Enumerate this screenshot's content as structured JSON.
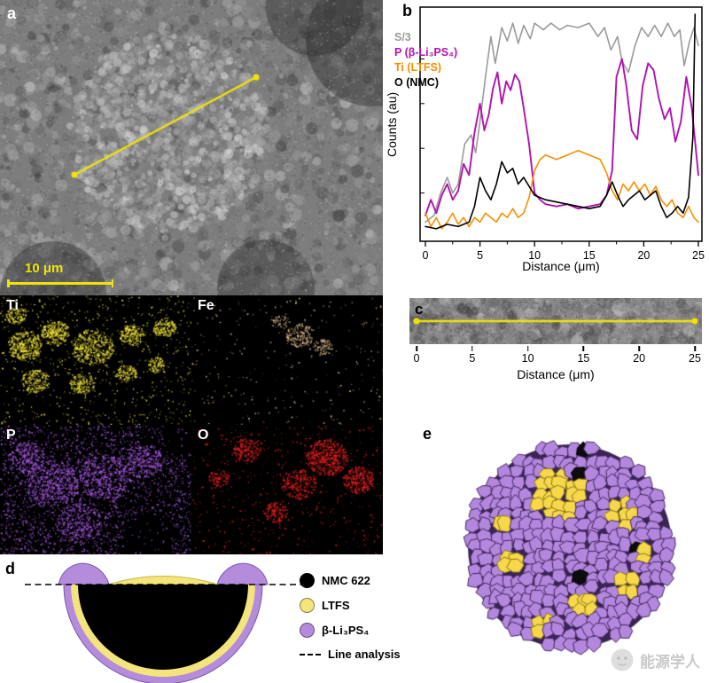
{
  "panel_a": {
    "label": "a",
    "scale_bar_label": "10 μm"
  },
  "element_maps": [
    {
      "label": "Ti",
      "color": "#f0e43a"
    },
    {
      "label": "Fe",
      "color": "#e6c08e"
    },
    {
      "label": "P",
      "color": "#aa5ce6"
    },
    {
      "label": "O",
      "color": "#e62020"
    }
  ],
  "panel_b": {
    "label": "b"
  },
  "panel_c": {
    "label": "c",
    "xlabel": "Distance (μm)",
    "xticks": [
      0,
      5,
      10,
      15,
      20,
      25
    ]
  },
  "panel_d": {
    "label": "d",
    "legend": [
      {
        "label": "NMC 622",
        "color": "#000000"
      },
      {
        "label": "LTFS",
        "color": "#f4e47c"
      },
      {
        "label": "β-Li₃PS₄",
        "color": "#b48cdb"
      },
      {
        "label": "Line analysis",
        "style": "dashed"
      }
    ]
  },
  "panel_e": {
    "label": "e"
  },
  "watermark": {
    "text": "能源学人"
  },
  "chart_data": {
    "type": "line",
    "title": "",
    "xlabel": "Distance (μm)",
    "ylabel": "Counts (au)",
    "xlim": [
      0,
      25
    ],
    "ylim": [
      0,
      1
    ],
    "xticks": [
      0,
      5,
      10,
      15,
      20,
      25
    ],
    "grid": false,
    "legend_position": "upper-left",
    "series": [
      {
        "name": "S/3",
        "color": "#9a9a9a",
        "points": [
          [
            0,
            0.07
          ],
          [
            0.8,
            0.1
          ],
          [
            1.4,
            0.2
          ],
          [
            2,
            0.27
          ],
          [
            2.5,
            0.2
          ],
          [
            3,
            0.24
          ],
          [
            3.6,
            0.42
          ],
          [
            4.2,
            0.46
          ],
          [
            4.6,
            0.38
          ],
          [
            5,
            0.52
          ],
          [
            5.5,
            0.72
          ],
          [
            6,
            0.9
          ],
          [
            6.4,
            0.78
          ],
          [
            7,
            0.94
          ],
          [
            7.5,
            0.88
          ],
          [
            8,
            0.96
          ],
          [
            8.5,
            0.87
          ],
          [
            9,
            0.95
          ],
          [
            9.6,
            0.89
          ],
          [
            10,
            0.96
          ],
          [
            10.8,
            0.93
          ],
          [
            11.5,
            0.96
          ],
          [
            12.3,
            0.93
          ],
          [
            13,
            0.95
          ],
          [
            14,
            0.94
          ],
          [
            15,
            0.96
          ],
          [
            15.8,
            0.9
          ],
          [
            16.4,
            0.94
          ],
          [
            17,
            0.84
          ],
          [
            17.6,
            0.9
          ],
          [
            18,
            0.79
          ],
          [
            18.6,
            0.74
          ],
          [
            19.2,
            0.86
          ],
          [
            19.8,
            0.94
          ],
          [
            20.4,
            0.9
          ],
          [
            21,
            0.95
          ],
          [
            21.6,
            0.9
          ],
          [
            22.2,
            0.96
          ],
          [
            22.8,
            0.9
          ],
          [
            23.3,
            0.93
          ],
          [
            23.7,
            0.77
          ],
          [
            24.2,
            0.88
          ],
          [
            24.6,
            0.94
          ],
          [
            25,
            0.86
          ]
        ]
      },
      {
        "name": "P (β-Li₃PS₄)",
        "color": "#b012b0",
        "points": [
          [
            0,
            0.1
          ],
          [
            0.5,
            0.17
          ],
          [
            1,
            0.11
          ],
          [
            1.5,
            0.19
          ],
          [
            2,
            0.24
          ],
          [
            2.5,
            0.17
          ],
          [
            3,
            0.21
          ],
          [
            3.5,
            0.33
          ],
          [
            4,
            0.28
          ],
          [
            4.5,
            0.47
          ],
          [
            5,
            0.6
          ],
          [
            5.4,
            0.48
          ],
          [
            5.8,
            0.55
          ],
          [
            6.2,
            0.67
          ],
          [
            6.6,
            0.74
          ],
          [
            7,
            0.6
          ],
          [
            7.4,
            0.7
          ],
          [
            7.8,
            0.66
          ],
          [
            8.2,
            0.73
          ],
          [
            8.6,
            0.7
          ],
          [
            9,
            0.58
          ],
          [
            9.5,
            0.42
          ],
          [
            10,
            0.2
          ],
          [
            10.5,
            0.17
          ],
          [
            11,
            0.15
          ],
          [
            12,
            0.14
          ],
          [
            13,
            0.15
          ],
          [
            14,
            0.13
          ],
          [
            15,
            0.14
          ],
          [
            16,
            0.15
          ],
          [
            16.6,
            0.19
          ],
          [
            17.1,
            0.3
          ],
          [
            17.5,
            0.72
          ],
          [
            18,
            0.8
          ],
          [
            18.4,
            0.68
          ],
          [
            18.9,
            0.48
          ],
          [
            19.4,
            0.44
          ],
          [
            19.9,
            0.68
          ],
          [
            20.4,
            0.78
          ],
          [
            20.9,
            0.75
          ],
          [
            21.4,
            0.62
          ],
          [
            21.9,
            0.53
          ],
          [
            22.4,
            0.58
          ],
          [
            22.9,
            0.43
          ],
          [
            23.4,
            0.52
          ],
          [
            23.9,
            0.72
          ],
          [
            24.4,
            0.58
          ],
          [
            25,
            0.28
          ]
        ]
      },
      {
        "name": "Ti (LTFS)",
        "color": "#f59000",
        "points": [
          [
            0,
            0.11
          ],
          [
            0.5,
            0.05
          ],
          [
            1,
            0.09
          ],
          [
            1.5,
            0.04
          ],
          [
            2,
            0.07
          ],
          [
            2.5,
            0.11
          ],
          [
            3,
            0.06
          ],
          [
            3.5,
            0.09
          ],
          [
            4,
            0.05
          ],
          [
            4.5,
            0.09
          ],
          [
            5,
            0.07
          ],
          [
            5.5,
            0.11
          ],
          [
            6,
            0.09
          ],
          [
            6.5,
            0.07
          ],
          [
            7,
            0.11
          ],
          [
            7.5,
            0.09
          ],
          [
            8,
            0.13
          ],
          [
            8.5,
            0.09
          ],
          [
            9,
            0.11
          ],
          [
            9.5,
            0.18
          ],
          [
            10,
            0.3
          ],
          [
            10.5,
            0.35
          ],
          [
            11,
            0.37
          ],
          [
            12,
            0.35
          ],
          [
            13,
            0.37
          ],
          [
            14,
            0.39
          ],
          [
            15,
            0.37
          ],
          [
            16,
            0.35
          ],
          [
            16.6,
            0.29
          ],
          [
            17.1,
            0.21
          ],
          [
            17.6,
            0.17
          ],
          [
            18.1,
            0.24
          ],
          [
            18.6,
            0.21
          ],
          [
            19.1,
            0.25
          ],
          [
            19.6,
            0.21
          ],
          [
            20.1,
            0.24
          ],
          [
            20.6,
            0.19
          ],
          [
            21.1,
            0.23
          ],
          [
            21.6,
            0.17
          ],
          [
            22.1,
            0.14
          ],
          [
            22.6,
            0.17
          ],
          [
            23.1,
            0.11
          ],
          [
            23.6,
            0.09
          ],
          [
            24.1,
            0.14
          ],
          [
            24.6,
            0.09
          ],
          [
            25,
            0.07
          ]
        ]
      },
      {
        "name": "O (NMC)",
        "color": "#000000",
        "points": [
          [
            0,
            0.05
          ],
          [
            1,
            0.04
          ],
          [
            2,
            0.06
          ],
          [
            3,
            0.05
          ],
          [
            4,
            0.07
          ],
          [
            4.5,
            0.14
          ],
          [
            5,
            0.27
          ],
          [
            5.5,
            0.21
          ],
          [
            6,
            0.17
          ],
          [
            6.5,
            0.24
          ],
          [
            7,
            0.34
          ],
          [
            7.5,
            0.29
          ],
          [
            8,
            0.31
          ],
          [
            8.5,
            0.24
          ],
          [
            9,
            0.27
          ],
          [
            9.5,
            0.23
          ],
          [
            10,
            0.19
          ],
          [
            11,
            0.17
          ],
          [
            12,
            0.16
          ],
          [
            13,
            0.15
          ],
          [
            14,
            0.14
          ],
          [
            15,
            0.13
          ],
          [
            16,
            0.14
          ],
          [
            16.6,
            0.19
          ],
          [
            17.1,
            0.25
          ],
          [
            17.6,
            0.19
          ],
          [
            18.1,
            0.14
          ],
          [
            18.6,
            0.17
          ],
          [
            19.1,
            0.19
          ],
          [
            19.6,
            0.21
          ],
          [
            20.1,
            0.17
          ],
          [
            20.6,
            0.19
          ],
          [
            21.1,
            0.21
          ],
          [
            21.6,
            0.14
          ],
          [
            22.1,
            0.09
          ],
          [
            22.6,
            0.11
          ],
          [
            23.1,
            0.14
          ],
          [
            23.6,
            0.11
          ],
          [
            24.1,
            0.18
          ],
          [
            24.5,
            0.45
          ],
          [
            24.7,
            1.0
          ]
        ]
      }
    ]
  }
}
